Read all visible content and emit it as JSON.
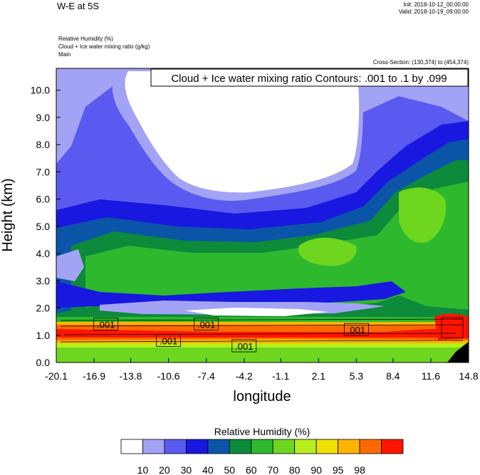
{
  "header": {
    "title": "W-E at 5S",
    "init": "Init: 2018-10-12_00:00:00",
    "valid": "Valid: 2018-10-19_09:00:00",
    "field1": "Relative Humidity   (%)",
    "field2": "Cloud + Ice water mixing ratio   (g/kg)",
    "field3": "Main",
    "cross_section": "Cross-Section: (130,374) to (454,374)"
  },
  "chart_data": {
    "type": "heatmap",
    "title": "W-E at 5S",
    "contour_title": "Cloud + Ice water mixing ratio Contours: .001 to .1 by .099",
    "xlabel": "longitude",
    "ylabel": "Height (km)",
    "xlim": [
      -20.1,
      14.8
    ],
    "ylim": [
      0.0,
      10.8
    ],
    "x_ticks": [
      "-20.1",
      "-16.9",
      "-13.8",
      "-10.6",
      "-7.4",
      "-4.2",
      "-1.1",
      "2.1",
      "5.3",
      "8.4",
      "11.6",
      "14.8"
    ],
    "y_ticks": [
      "0.0",
      "1.0",
      "2.0",
      "3.0",
      "4.0",
      "5.0",
      "6.0",
      "7.0",
      "8.0",
      "9.0",
      "10.0"
    ],
    "contour_labels": [
      {
        "text": ".001",
        "lon": -15.9,
        "h": 1.4
      },
      {
        "text": ".001",
        "lon": -10.6,
        "h": 0.8
      },
      {
        "text": ".001",
        "lon": -7.4,
        "h": 1.4
      },
      {
        "text": ".001",
        "lon": -4.2,
        "h": 0.6
      },
      {
        "text": ".001",
        "lon": 5.3,
        "h": 1.2
      }
    ],
    "colorbar": {
      "title": "Relative Humidity  (%)",
      "levels": [
        "10",
        "20",
        "30",
        "40",
        "50",
        "60",
        "70",
        "80",
        "90",
        "95",
        "98"
      ],
      "colors": [
        "#ffffff",
        "#a3a3f5",
        "#5a5af0",
        "#1818e0",
        "#0b55a8",
        "#0d8a3a",
        "#2eb82e",
        "#6ed61f",
        "#b8ee1a",
        "#f0e000",
        "#ffb400",
        "#ff6a00",
        "#ff1500"
      ]
    }
  }
}
